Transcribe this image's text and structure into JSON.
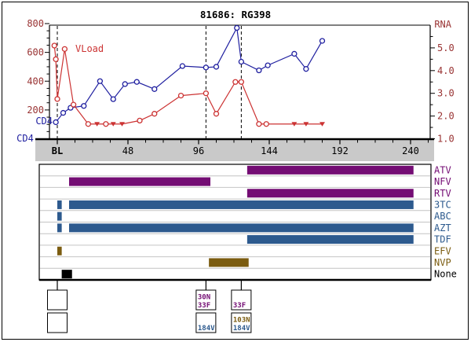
{
  "title": "81686: RG398",
  "colors": {
    "axis_value_text": "#993333",
    "x_axis_text": "#000000",
    "cd4": "#2020a0",
    "vload": "#cc3333",
    "band_gray": "#c9c9c9",
    "row_separator": "#c4c4c4",
    "pi": "#740d74",
    "nrti": "#2d5a8e",
    "nnrti": "#7b5c10",
    "none": "#000000"
  },
  "chart_data": {
    "type": "line",
    "title": "81686: RG398",
    "x_axis": {
      "tick_weeks": [
        0,
        48,
        96,
        144,
        192,
        240
      ],
      "tick_labels": [
        "BL",
        "48",
        "96",
        "144",
        "192",
        "240"
      ],
      "minor_step_weeks": 12,
      "max_week": 252
    },
    "left_axis": {
      "label": "CD4",
      "tick_values": [
        200,
        400,
        600,
        800
      ],
      "range": [
        0,
        800
      ],
      "minor_step": 50
    },
    "right_axis": {
      "label": "RNA",
      "tick_values": [
        1.0,
        2.0,
        3.0,
        4.0,
        5.0
      ],
      "range": [
        1.0,
        6.0
      ],
      "minor_step": 0.5
    },
    "series": [
      {
        "name": "CD4",
        "axis": "left",
        "marker": "open-circle",
        "points": [
          [
            -1,
            115
          ],
          [
            4,
            180
          ],
          [
            9,
            215
          ],
          [
            18,
            228
          ],
          [
            29,
            400
          ],
          [
            38,
            275
          ],
          [
            46,
            380
          ],
          [
            54,
            395
          ],
          [
            66,
            345
          ],
          [
            85,
            505
          ],
          [
            101,
            495
          ],
          [
            108,
            500
          ],
          [
            122,
            770
          ],
          [
            125,
            535
          ],
          [
            137,
            475
          ],
          [
            143,
            510
          ],
          [
            161,
            590
          ],
          [
            169,
            485
          ],
          [
            180,
            680
          ]
        ]
      },
      {
        "name": "VLoad",
        "axis": "right",
        "marker": "open-circle",
        "below_limit_marker": "filled-triangle-down",
        "points": [
          [
            -2,
            5.1
          ],
          [
            -1,
            4.5
          ],
          [
            0,
            2.75
          ],
          [
            5,
            4.95
          ],
          [
            11,
            2.5
          ],
          [
            21,
            1.65
          ],
          [
            27,
            1.65,
            "bdl"
          ],
          [
            33,
            1.65
          ],
          [
            38,
            1.65,
            "bdl"
          ],
          [
            44,
            1.65,
            "bdl"
          ],
          [
            56,
            1.8
          ],
          [
            66,
            2.1
          ],
          [
            84,
            2.9
          ],
          [
            101,
            3.0
          ],
          [
            108,
            2.1
          ],
          [
            121,
            3.5
          ],
          [
            125,
            3.5
          ],
          [
            137,
            1.65
          ],
          [
            142,
            1.65
          ],
          [
            161,
            1.65,
            "bdl"
          ],
          [
            169,
            1.65,
            "bdl"
          ],
          [
            180,
            1.65,
            "bdl"
          ]
        ]
      }
    ],
    "event_line_weeks": [
      0,
      101,
      125
    ]
  },
  "regimen": {
    "drugs": [
      {
        "name": "ATV",
        "class": "pi",
        "segments_weeks": [
          [
            129,
            242
          ]
        ]
      },
      {
        "name": "NFV",
        "class": "pi",
        "segments_weeks": [
          [
            8,
            104
          ]
        ]
      },
      {
        "name": "RTV",
        "class": "pi",
        "segments_weeks": [
          [
            129,
            242
          ]
        ]
      },
      {
        "name": "3TC",
        "class": "nrti",
        "segments_weeks": [
          [
            0,
            3
          ],
          [
            8,
            242
          ]
        ]
      },
      {
        "name": "ABC",
        "class": "nrti",
        "segments_weeks": [
          [
            0,
            3
          ]
        ]
      },
      {
        "name": "AZT",
        "class": "nrti",
        "segments_weeks": [
          [
            0,
            3
          ],
          [
            8,
            242
          ]
        ]
      },
      {
        "name": "TDF",
        "class": "nrti",
        "segments_weeks": [
          [
            129,
            242
          ]
        ]
      },
      {
        "name": "EFV",
        "class": "nnrti",
        "segments_weeks": [
          [
            0,
            3
          ]
        ]
      },
      {
        "name": "NVP",
        "class": "nnrti",
        "segments_weeks": [
          [
            103,
            130
          ]
        ]
      },
      {
        "name": "None",
        "class": "none",
        "segments_weeks": [
          [
            3,
            10
          ]
        ]
      }
    ]
  },
  "annotations": [
    {
      "week": 0,
      "boxes": [
        {
          "lines": []
        },
        {
          "lines": []
        }
      ]
    },
    {
      "week": 101,
      "boxes": [
        {
          "lines": [
            {
              "text": "30N",
              "class": "pi"
            },
            {
              "text": "33F",
              "class": "pi"
            }
          ]
        },
        {
          "lines": [
            {
              "text": "184V",
              "class": "nrti"
            }
          ]
        }
      ]
    },
    {
      "week": 125,
      "boxes": [
        {
          "lines": [
            {
              "text": "33F",
              "class": "pi"
            }
          ]
        },
        {
          "lines": [
            {
              "text": "103N",
              "class": "nnrti"
            },
            {
              "text": "184V",
              "class": "nrti"
            }
          ]
        }
      ]
    }
  ]
}
